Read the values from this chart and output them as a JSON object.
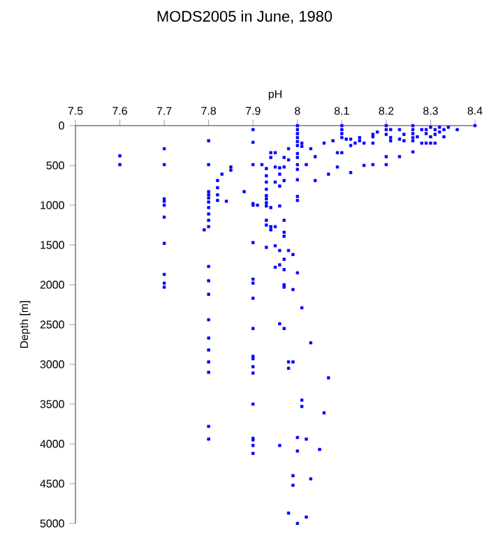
{
  "chart_data": {
    "type": "scatter",
    "title": "MODS2005 in June, 1980",
    "xlabel": "pH",
    "ylabel": "Depth [m]",
    "xlim": [
      7.5,
      8.4
    ],
    "xticks": [
      7.5,
      7.6,
      7.7,
      7.8,
      7.9,
      8,
      8.1,
      8.2,
      8.3,
      8.4
    ],
    "ylim": [
      5000,
      0
    ],
    "yticks": [
      0,
      500,
      1000,
      1500,
      2000,
      2500,
      3000,
      3500,
      4000,
      4500,
      5000
    ],
    "marker": "square",
    "series": [
      {
        "color": "#0000ff",
        "x": [
          7.6,
          7.6,
          7.7,
          7.7,
          7.7,
          7.7,
          7.7,
          7.7,
          7.7,
          7.7,
          7.7,
          7.7,
          7.8,
          7.8,
          7.8,
          7.8,
          7.8,
          7.8,
          7.8,
          7.8,
          7.8,
          7.8,
          7.79,
          7.8,
          7.8,
          7.8,
          7.8,
          7.8,
          7.8,
          7.8,
          7.8,
          7.8,
          7.8,
          7.82,
          7.82,
          7.82,
          7.82,
          7.83,
          7.84,
          7.85,
          7.85,
          7.88,
          7.9,
          7.9,
          7.9,
          7.9,
          7.9,
          7.91,
          7.9,
          7.9,
          7.9,
          7.9,
          7.9,
          7.9,
          7.9,
          7.9,
          7.9,
          7.9,
          7.9,
          7.9,
          7.9,
          7.9,
          7.92,
          7.93,
          7.93,
          7.93,
          7.93,
          7.93,
          7.93,
          7.93,
          7.93,
          7.93,
          7.93,
          7.93,
          7.94,
          7.94,
          7.95,
          7.95,
          7.94,
          7.94,
          7.94,
          7.95,
          7.96,
          7.96,
          7.96,
          7.96,
          7.97,
          7.97,
          7.97,
          7.97,
          7.97,
          7.97,
          7.95,
          7.95,
          7.96,
          7.98,
          7.99,
          7.97,
          7.95,
          7.96,
          7.97,
          8.0,
          7.97,
          7.97,
          7.99,
          8.01,
          7.96,
          7.97,
          8.03,
          7.98,
          7.99,
          7.98,
          8.07,
          8.01,
          8.01,
          8.06,
          8.0,
          8.0,
          8.02,
          8.05,
          7.96,
          7.99,
          7.99,
          8.03,
          7.98,
          8.02,
          8.0,
          8.0,
          8.0,
          8.0,
          8.0,
          8.0,
          8.0,
          8.0,
          8.0,
          8.0,
          8.0,
          8.0,
          8.0,
          8.0,
          7.98,
          7.98,
          8.01,
          8.01,
          8.02,
          8.03,
          8.04,
          8.04,
          8.06,
          8.07,
          8.08,
          8.09,
          8.09,
          8.1,
          8.1,
          8.1,
          8.1,
          8.1,
          8.11,
          8.12,
          8.12,
          8.12,
          8.13,
          8.14,
          8.14,
          8.15,
          8.15,
          8.17,
          8.17,
          8.17,
          8.17,
          8.18,
          8.2,
          8.2,
          8.2,
          8.2,
          8.2,
          8.21,
          8.21,
          8.21,
          8.23,
          8.23,
          8.23,
          8.24,
          8.24,
          8.26,
          8.26,
          8.26,
          8.26,
          8.26,
          8.26,
          8.27,
          8.28,
          8.28,
          8.29,
          8.29,
          8.29,
          8.3,
          8.3,
          8.3,
          8.31,
          8.31,
          8.31,
          8.32,
          8.32,
          8.33,
          8.33,
          8.34,
          8.36,
          8.4
        ],
        "values": [
          380,
          490,
          290,
          490,
          920,
          950,
          1000,
          1150,
          1480,
          1870,
          1980,
          2030,
          190,
          490,
          830,
          870,
          910,
          960,
          1030,
          1110,
          1190,
          1270,
          1310,
          1770,
          1950,
          2120,
          2440,
          2670,
          2820,
          2970,
          3100,
          3780,
          3940,
          690,
          780,
          870,
          940,
          610,
          950,
          520,
          560,
          830,
          50,
          210,
          490,
          980,
          1000,
          1000,
          1470,
          1930,
          1980,
          2170,
          2550,
          2900,
          2930,
          3030,
          3110,
          3500,
          3930,
          3950,
          4020,
          4120,
          490,
          540,
          630,
          710,
          800,
          880,
          920,
          970,
          1010,
          1190,
          1250,
          1530,
          400,
          340,
          340,
          520,
          1030,
          1270,
          1310,
          710,
          530,
          610,
          760,
          1010,
          400,
          520,
          690,
          1190,
          1340,
          1390,
          1270,
          1510,
          1570,
          1570,
          1620,
          1680,
          1780,
          1750,
          1810,
          1850,
          2000,
          2030,
          2060,
          2290,
          2490,
          2550,
          2730,
          2970,
          2970,
          3050,
          3170,
          3450,
          3530,
          3610,
          3920,
          4090,
          3940,
          4070,
          4020,
          4400,
          4520,
          4440,
          4870,
          4920,
          5000,
          0,
          50,
          100,
          150,
          200,
          250,
          350,
          400,
          490,
          550,
          680,
          890,
          940,
          290,
          430,
          220,
          260,
          490,
          290,
          390,
          690,
          220,
          610,
          190,
          340,
          520,
          0,
          50,
          100,
          150,
          340,
          170,
          170,
          590,
          250,
          220,
          150,
          190,
          220,
          500,
          490,
          220,
          140,
          110,
          80,
          0,
          50,
          110,
          390,
          490,
          50,
          150,
          190,
          170,
          50,
          390,
          110,
          190,
          0,
          50,
          100,
          150,
          190,
          330,
          140,
          50,
          220,
          50,
          100,
          220,
          20,
          140,
          220,
          50,
          110,
          220,
          20,
          80,
          50,
          140,
          20,
          50,
          0
        ]
      }
    ]
  }
}
